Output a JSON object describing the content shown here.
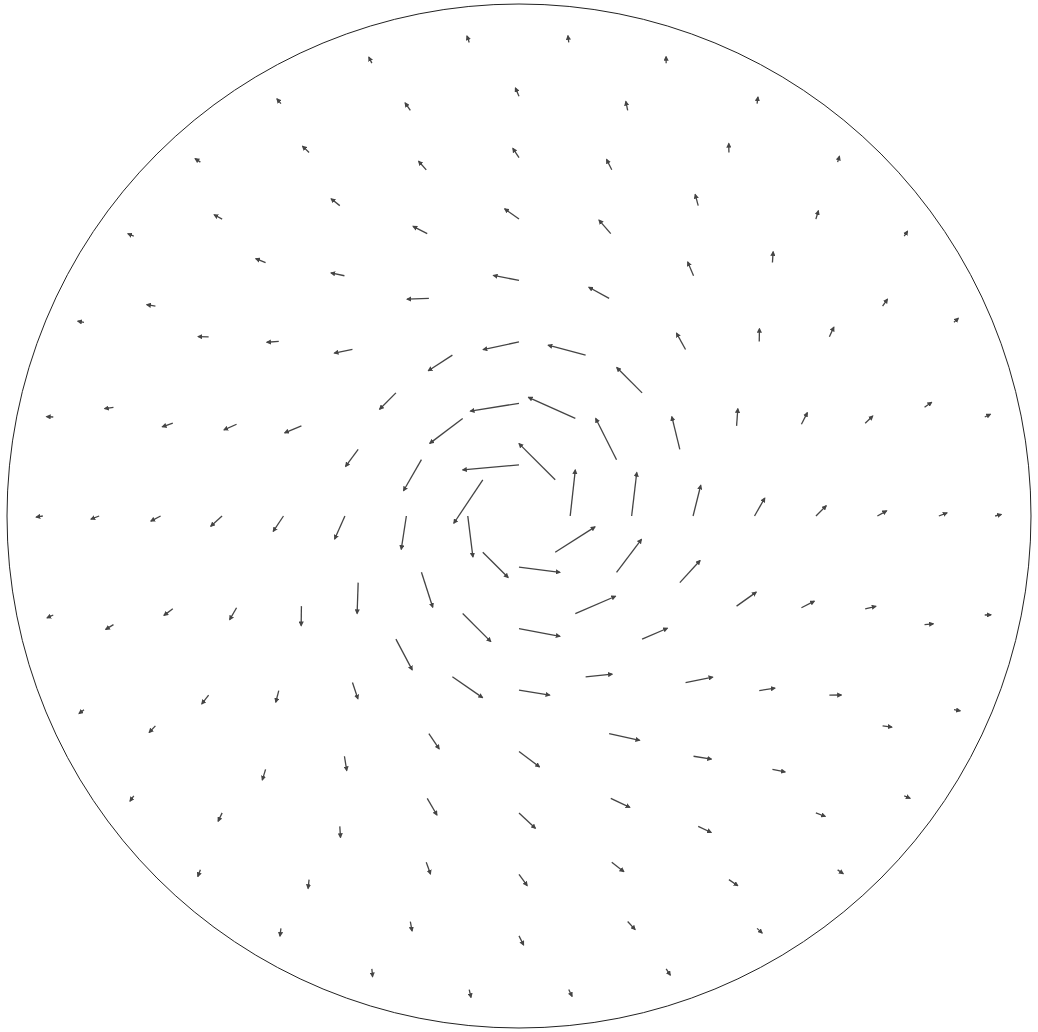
{
  "chart_data": {
    "type": "quiver",
    "color": "#444444",
    "xlim": [
      -1,
      1
    ],
    "ylim": [
      -1,
      1
    ],
    "tick_labels": false,
    "rings": [
      {
        "r": 0.1,
        "theta": [
          0,
          45,
          90,
          135,
          180,
          225,
          270,
          315
        ],
        "u_r": [
          0.1,
          0,
          -0.1,
          -0.2,
          -0.1,
          0,
          0.1,
          0.2
        ],
        "u_t": [
          0.9,
          1.0,
          1.1,
          1.0,
          0.8,
          0.7,
          0.8,
          0.9
        ]
      },
      {
        "r": 0.22,
        "theta": [
          0,
          30,
          60,
          90,
          120,
          150,
          180,
          210,
          240,
          270,
          300,
          330
        ],
        "u_r": [
          0.1,
          0.05,
          -0.1,
          -0.15,
          -0.1,
          0,
          0.1,
          0.15,
          0.2,
          0.15,
          0.1,
          0.1
        ],
        "u_t": [
          0.85,
          0.9,
          1.0,
          0.95,
          0.8,
          0.7,
          0.65,
          0.7,
          0.75,
          0.8,
          0.85,
          0.8
        ]
      },
      {
        "r": 0.34,
        "theta": [
          0,
          22.5,
          45,
          67.5,
          90,
          112.5,
          135,
          157.5,
          180,
          202.5,
          225,
          247.5,
          270,
          292.5,
          315,
          337.5
        ],
        "u_r": [
          0.15,
          0.1,
          0,
          -0.1,
          -0.15,
          -0.1,
          0,
          0.1,
          0.2,
          0.25,
          0.2,
          0.15,
          0.1,
          0.15,
          0.2,
          0.2
        ],
        "u_t": [
          0.6,
          0.65,
          0.7,
          0.75,
          0.7,
          0.55,
          0.45,
          0.4,
          0.45,
          0.55,
          0.65,
          0.7,
          0.6,
          0.5,
          0.5,
          0.55
        ]
      },
      {
        "r": 0.46,
        "theta": [
          0,
          22.5,
          45,
          67.5,
          90,
          112.5,
          135,
          157.5,
          180,
          202.5,
          225,
          247.5,
          270,
          292.5,
          315,
          337.5
        ],
        "u_r": [
          0.2,
          0.15,
          0.1,
          0.05,
          0.1,
          0.15,
          0.2,
          0.25,
          0.2,
          0.15,
          0.15,
          0.2,
          0.3,
          0.35,
          0.3,
          0.25
        ],
        "u_t": [
          0.35,
          0.3,
          0.35,
          0.45,
          0.5,
          0.4,
          0.3,
          0.25,
          0.3,
          0.35,
          0.3,
          0.3,
          0.4,
          0.5,
          0.45,
          0.4
        ]
      },
      {
        "r": 0.58,
        "theta": [
          0,
          18,
          36,
          54,
          72,
          90,
          108,
          126,
          144,
          162,
          180,
          198,
          216,
          234,
          252,
          270,
          288,
          306,
          324,
          342
        ],
        "u_r": [
          0.2,
          0.18,
          0.15,
          0.15,
          0.18,
          0.2,
          0.22,
          0.2,
          0.18,
          0.2,
          0.22,
          0.2,
          0.18,
          0.2,
          0.25,
          0.3,
          0.28,
          0.25,
          0.22,
          0.2
        ],
        "u_t": [
          0.2,
          0.18,
          0.2,
          0.25,
          0.3,
          0.28,
          0.22,
          0.18,
          0.15,
          0.18,
          0.2,
          0.18,
          0.15,
          0.2,
          0.28,
          0.32,
          0.3,
          0.25,
          0.22,
          0.2
        ]
      },
      {
        "r": 0.7,
        "theta": [
          0,
          15,
          30,
          45,
          60,
          75,
          90,
          105,
          120,
          135,
          150,
          165,
          180,
          195,
          210,
          225,
          240,
          255,
          270,
          285,
          300,
          315,
          330,
          345
        ],
        "u_r": [
          0.18,
          0.18,
          0.17,
          0.16,
          0.16,
          0.17,
          0.18,
          0.2,
          0.2,
          0.19,
          0.18,
          0.18,
          0.19,
          0.2,
          0.2,
          0.19,
          0.18,
          0.2,
          0.22,
          0.24,
          0.23,
          0.21,
          0.2,
          0.19
        ],
        "u_t": [
          0.1,
          0.1,
          0.12,
          0.14,
          0.16,
          0.15,
          0.12,
          0.1,
          0.08,
          0.08,
          0.1,
          0.12,
          0.1,
          0.08,
          0.08,
          0.1,
          0.12,
          0.14,
          0.16,
          0.18,
          0.16,
          0.14,
          0.12,
          0.1
        ]
      },
      {
        "r": 0.82,
        "theta": [
          0,
          15,
          30,
          45,
          60,
          75,
          90,
          105,
          120,
          135,
          150,
          165,
          180,
          195,
          210,
          225,
          240,
          255,
          270,
          285,
          300,
          315,
          330,
          345
        ],
        "u_r": [
          0.16,
          0.16,
          0.15,
          0.15,
          0.15,
          0.16,
          0.16,
          0.17,
          0.17,
          0.17,
          0.16,
          0.16,
          0.16,
          0.17,
          0.17,
          0.17,
          0.16,
          0.17,
          0.18,
          0.19,
          0.19,
          0.18,
          0.17,
          0.16
        ],
        "u_t": [
          0.06,
          0.06,
          0.07,
          0.08,
          0.09,
          0.08,
          0.07,
          0.06,
          0.05,
          0.05,
          0.06,
          0.07,
          0.06,
          0.05,
          0.05,
          0.06,
          0.07,
          0.08,
          0.09,
          0.1,
          0.09,
          0.08,
          0.07,
          0.06
        ]
      },
      {
        "r": 0.93,
        "theta": [
          0,
          12,
          24,
          36,
          48,
          60,
          72,
          84,
          96,
          108,
          120,
          132,
          144,
          156,
          168,
          180,
          192,
          204,
          216,
          228,
          240,
          252,
          264,
          276,
          288,
          300,
          312,
          324,
          336,
          348
        ],
        "u_r": [
          0.12,
          0.12,
          0.11,
          0.11,
          0.11,
          0.12,
          0.12,
          0.13,
          0.13,
          0.13,
          0.12,
          0.12,
          0.12,
          0.12,
          0.13,
          0.13,
          0.13,
          0.12,
          0.12,
          0.13,
          0.14,
          0.14,
          0.15,
          0.14,
          0.14,
          0.13,
          0.13,
          0.12,
          0.12,
          0.12
        ],
        "u_t": [
          0.03,
          0.03,
          0.04,
          0.04,
          0.05,
          0.05,
          0.04,
          0.03,
          0.03,
          0.02,
          0.02,
          0.03,
          0.03,
          0.03,
          0.02,
          0.02,
          0.03,
          0.03,
          0.04,
          0.05,
          0.06,
          0.06,
          0.05,
          0.05,
          0.04,
          0.04,
          0.03,
          0.03,
          0.03,
          0.03
        ]
      }
    ]
  }
}
